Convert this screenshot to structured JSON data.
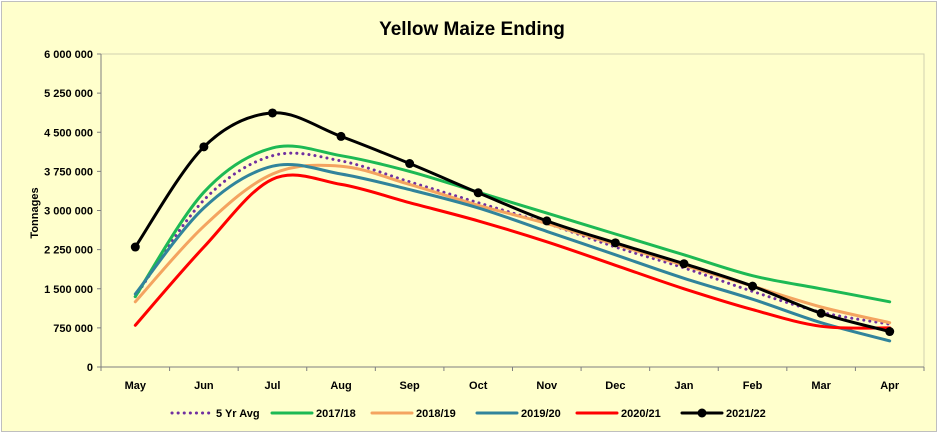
{
  "chart_data": {
    "type": "line",
    "title": "Yellow Maize Ending",
    "xlabel": "",
    "ylabel": "Tonnages",
    "categories": [
      "May",
      "Jun",
      "Jul",
      "Aug",
      "Sep",
      "Oct",
      "Nov",
      "Dec",
      "Jan",
      "Feb",
      "Mar",
      "Apr"
    ],
    "y_ticks": [
      "0",
      "750 000",
      "1 500 000",
      "2 250 000",
      "3 000 000",
      "3 750 000",
      "4 500 000",
      "5 250 000",
      "6 000 000"
    ],
    "ylim": [
      0,
      6000000
    ],
    "grid": false,
    "legend_position": "bottom",
    "series": [
      {
        "name": "5 Yr Avg",
        "color": "#7030a0",
        "style": "dotted",
        "markers": false,
        "values": [
          1350000,
          3200000,
          4050000,
          3950000,
          3550000,
          3150000,
          2750000,
          2300000,
          1900000,
          1450000,
          1050000,
          820000
        ]
      },
      {
        "name": "2017/18",
        "color": "#1db954",
        "style": "solid",
        "markers": false,
        "values": [
          1350000,
          3350000,
          4200000,
          4050000,
          3750000,
          3350000,
          2950000,
          2550000,
          2150000,
          1750000,
          1500000,
          1250000
        ]
      },
      {
        "name": "2018/19",
        "color": "#f4a460",
        "style": "solid",
        "markers": false,
        "values": [
          1250000,
          2700000,
          3700000,
          3850000,
          3500000,
          3100000,
          2750000,
          2350000,
          1950000,
          1550000,
          1150000,
          850000
        ]
      },
      {
        "name": "2019/20",
        "color": "#31849b",
        "style": "solid",
        "markers": false,
        "values": [
          1400000,
          3050000,
          3850000,
          3700000,
          3400000,
          3050000,
          2600000,
          2150000,
          1700000,
          1300000,
          850000,
          500000
        ]
      },
      {
        "name": "2020/21",
        "color": "#ff0000",
        "style": "solid",
        "markers": false,
        "values": [
          800000,
          2300000,
          3600000,
          3500000,
          3150000,
          2800000,
          2400000,
          1950000,
          1500000,
          1100000,
          780000,
          750000
        ]
      },
      {
        "name": "2021/22",
        "color": "#000000",
        "style": "solid",
        "markers": true,
        "values": [
          2300000,
          4220000,
          4870000,
          4420000,
          3900000,
          3340000,
          2800000,
          2380000,
          1980000,
          1550000,
          1030000,
          680000
        ]
      }
    ]
  }
}
